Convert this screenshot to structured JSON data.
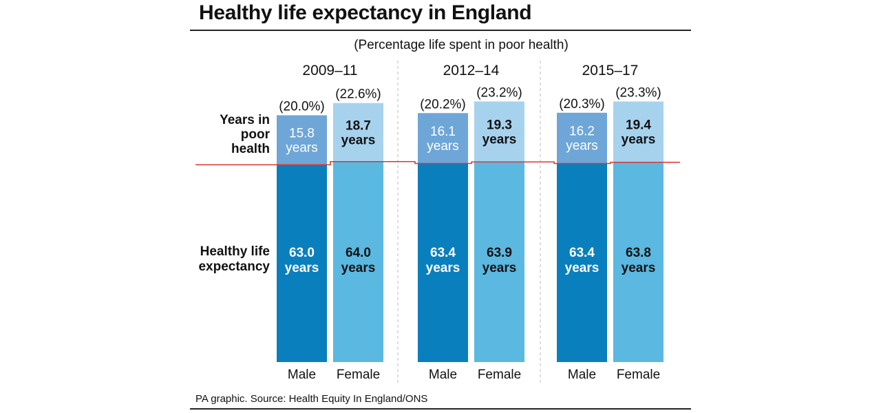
{
  "title": "Healthy life expectancy in England",
  "subtitle": "(Percentage life spent in poor health)",
  "source": "PA graphic. Source: Health Equity In England/ONS",
  "chart_data": {
    "type": "bar",
    "stacked": true,
    "unit_label": "years",
    "row_labels": {
      "poor_health": [
        "Years in",
        "poor",
        "health"
      ],
      "healthy": [
        "Healthy life",
        "expectancy"
      ]
    },
    "groups": [
      {
        "period": "2009–11",
        "bars": [
          {
            "sex": "Male",
            "healthy": "63.0",
            "poor": "15.8",
            "pct": "(20.0%)"
          },
          {
            "sex": "Female",
            "healthy": "64.0",
            "poor": "18.7",
            "pct": "(22.6%)"
          }
        ]
      },
      {
        "period": "2012–14",
        "bars": [
          {
            "sex": "Male",
            "healthy": "63.4",
            "poor": "16.1",
            "pct": "(20.2%)"
          },
          {
            "sex": "Female",
            "healthy": "63.9",
            "poor": "19.3",
            "pct": "(23.2%)"
          }
        ]
      },
      {
        "period": "2015–17",
        "bars": [
          {
            "sex": "Male",
            "healthy": "63.4",
            "poor": "16.2",
            "pct": "(20.3%)"
          },
          {
            "sex": "Female",
            "healthy": "63.8",
            "poor": "19.4",
            "pct": "(23.3%)"
          }
        ]
      }
    ],
    "colors": {
      "male_healthy": "#0a7fbd",
      "male_poor": "#6ea6d8",
      "female_healthy": "#5ab8e1",
      "female_poor": "#a6d2ee",
      "divider_line": "#e0332b"
    }
  }
}
